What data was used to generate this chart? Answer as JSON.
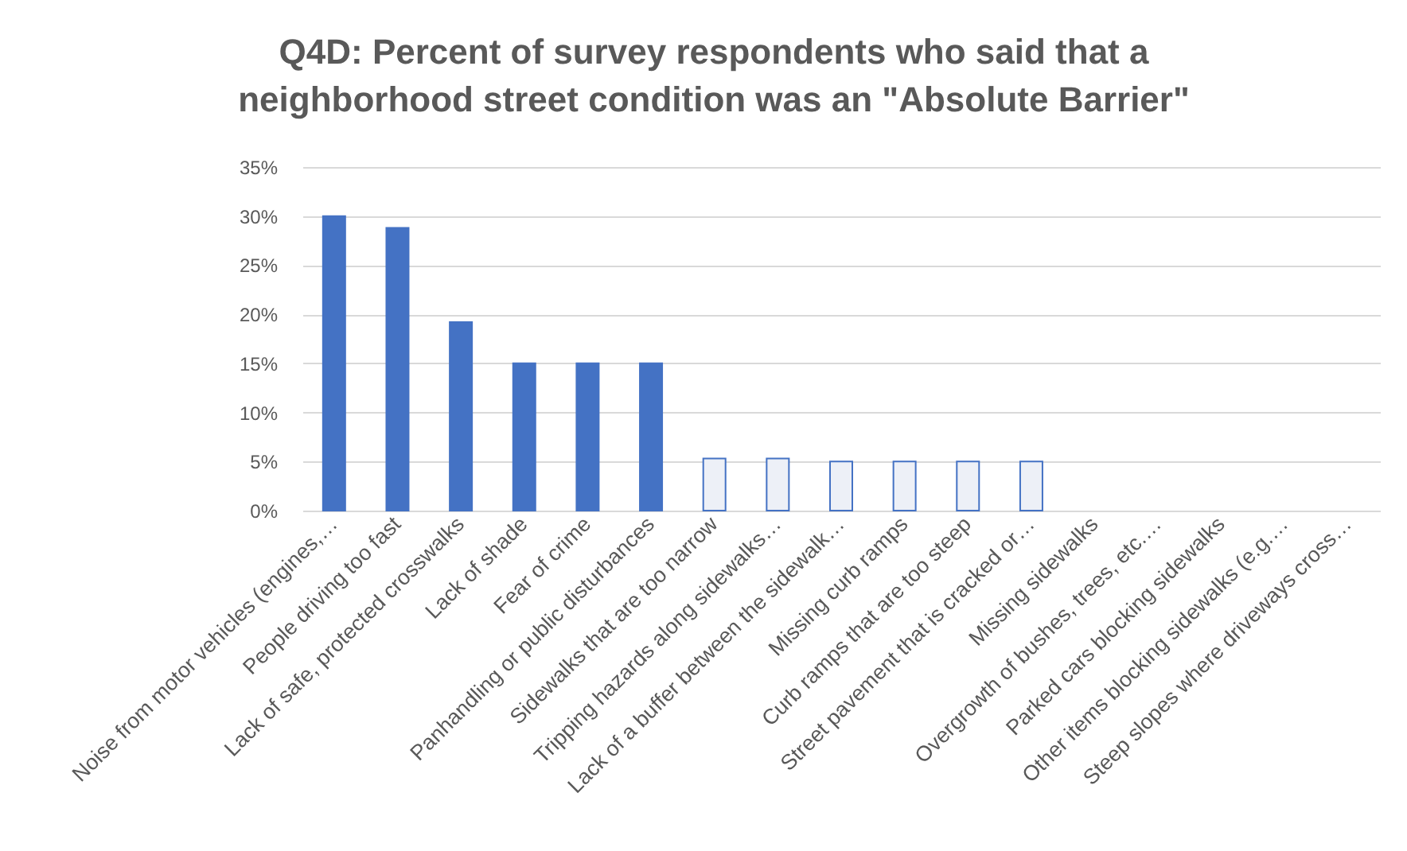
{
  "chart_data": {
    "type": "bar",
    "title": "Q4D: Percent of survey respondents who said that a\nneighborhood street condition was an \"Absolute Barrier\"",
    "categories": [
      "Noise from motor vehicles (engines,…",
      "People driving too fast",
      "Lack of safe, protected crosswalks",
      "Lack of shade",
      "Fear of crime",
      "Panhandling or public disturbances",
      "Sidewalks that are too narrow",
      "Tripping hazards along sidewalks…",
      "Lack of a buffer between the sidewalk…",
      "Missing curb ramps",
      "Curb ramps that are too steep",
      "Street pavement that is cracked or…",
      "Missing sidewalks",
      "Overgrowth of bushes, trees, etc.…",
      "Parked cars blocking sidewalks",
      "Other items blocking sidewalks (e.g.…",
      "Steep slopes where driveways cross…"
    ],
    "values": [
      30,
      28.8,
      19.2,
      15,
      15,
      15,
      5.3,
      5.3,
      5,
      5,
      5,
      5,
      0,
      0,
      0,
      0,
      0
    ],
    "colors": [
      "#4472c4",
      "#4472c4",
      "#4472c4",
      "#4472c4",
      "#4472c4",
      "#4472c4",
      "#edf0f7",
      "#edf0f7",
      "#edf0f7",
      "#edf0f7",
      "#edf0f7",
      "#edf0f7",
      "#edf0f7",
      "#edf0f7",
      "#edf0f7",
      "#edf0f7",
      "#edf0f7"
    ],
    "ylim": [
      0,
      35
    ],
    "yticks": [
      {
        "value": 0,
        "label": "0%"
      },
      {
        "value": 5,
        "label": "5%"
      },
      {
        "value": 10,
        "label": "10%"
      },
      {
        "value": 15,
        "label": "15%"
      },
      {
        "value": 20,
        "label": "20%"
      },
      {
        "value": 25,
        "label": "25%"
      },
      {
        "value": 30,
        "label": "30%"
      },
      {
        "value": 35,
        "label": "35%"
      }
    ],
    "grid": "y"
  }
}
